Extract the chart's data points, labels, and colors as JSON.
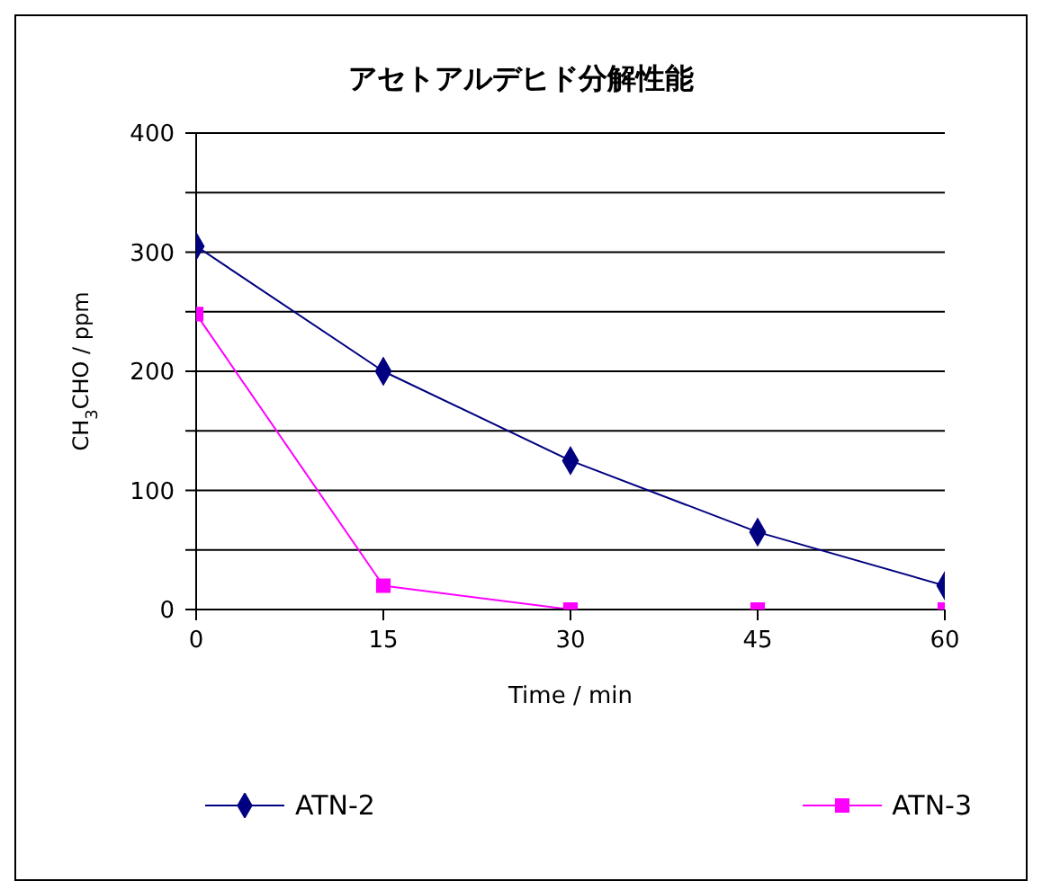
{
  "chart_data": {
    "type": "line",
    "title": "アセトアルデヒド分解性能",
    "xlabel": "Time / min",
    "ylabel": "CH$_{3}$CHO / ppm",
    "x": [
      0,
      15,
      30,
      45,
      60
    ],
    "series": [
      {
        "name": "ATN-2",
        "color": "#000080",
        "marker": "diamond",
        "values": [
          305,
          200,
          125,
          65,
          20
        ]
      },
      {
        "name": "ATN-3",
        "color": "#ff00ff",
        "marker": "square",
        "values": [
          248,
          20,
          0,
          0,
          0
        ]
      }
    ],
    "xlim": [
      0,
      60
    ],
    "xticks": [
      0,
      15,
      30,
      45,
      60
    ],
    "ylim": [
      0,
      400
    ],
    "yticks": [
      0,
      {
        "value": 50,
        "label": null
      },
      100,
      {
        "value": 150,
        "label": null
      },
      200,
      {
        "value": 250,
        "label": null
      },
      300,
      {
        "value": 350,
        "label": null
      },
      400
    ],
    "grid": "y",
    "legend": "bottom",
    "line_style": "solid"
  }
}
